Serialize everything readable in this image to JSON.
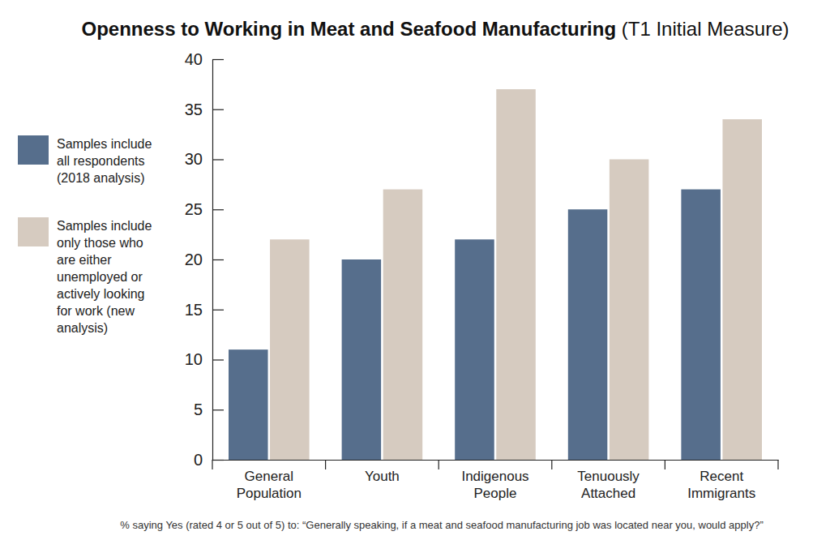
{
  "chart_data": {
    "type": "bar",
    "title": "Openness to Working in Meat and Seafood Manufacturing",
    "subtitle": "(T1 Initial Measure)",
    "categories": [
      "General Population",
      "Youth",
      "Indigenous People",
      "Tenuously Attached",
      "Recent Immigrants"
    ],
    "series": [
      {
        "name": "Samples include all respondents (2018 analysis)",
        "color": "#566e8c",
        "values": [
          11,
          20,
          22,
          25,
          27
        ]
      },
      {
        "name": "Samples include only those who are either unemployed or actively looking for work (new analysis)",
        "color": "#d6cbc0",
        "values": [
          22,
          27,
          37,
          30,
          34
        ]
      }
    ],
    "ylim": [
      0,
      40
    ],
    "yticks": [
      0,
      5,
      10,
      15,
      20,
      25,
      30,
      35,
      40
    ],
    "grid": false,
    "legend": "left",
    "annotations": [
      "% saying Yes (rated 4 or 5 out of 5) to: “Generally speaking, if a meat and seafood manufacturing job was located near you, would apply?”"
    ]
  }
}
